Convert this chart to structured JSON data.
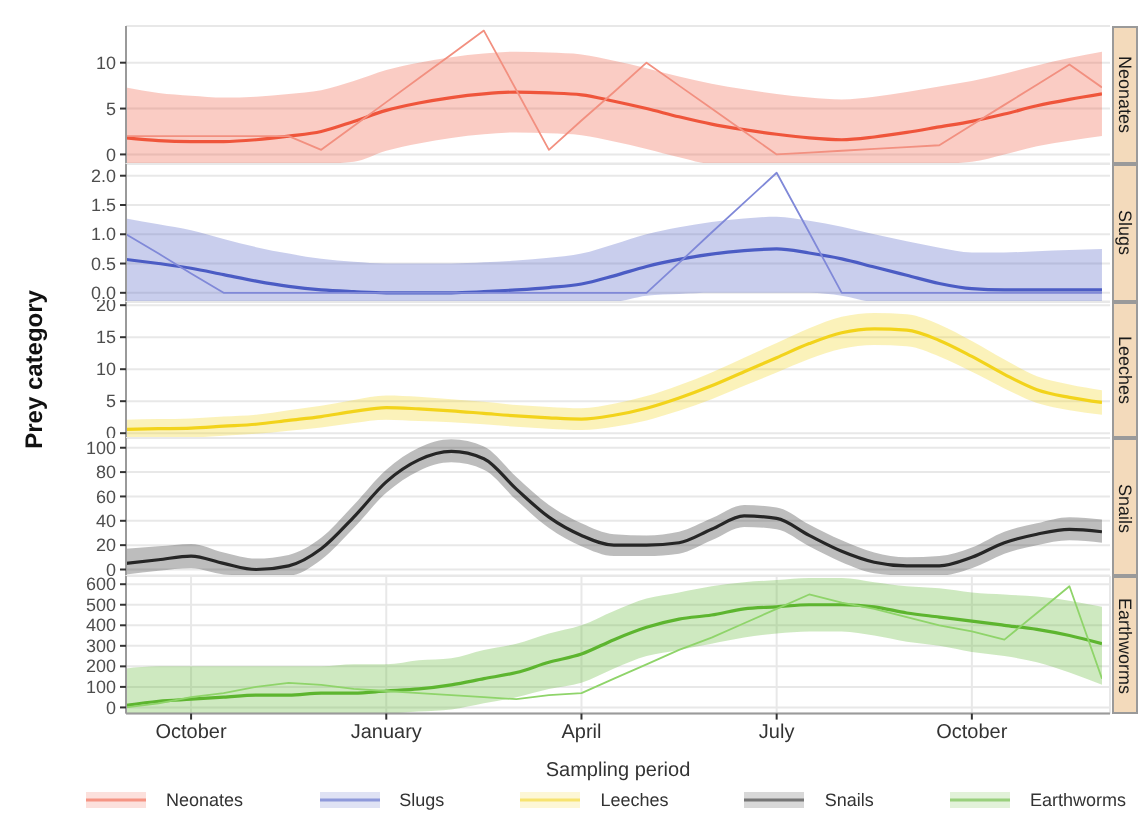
{
  "chart_data": [
    {
      "type": "line",
      "title": "Neonates",
      "categories": [
        null,
        null,
        null,
        null,
        null,
        null,
        null,
        null,
        null,
        null,
        null,
        null,
        null,
        null,
        null,
        null,
        null,
        null,
        null,
        null,
        null,
        null,
        null,
        null,
        null,
        null,
        null,
        null,
        null,
        null,
        null
      ],
      "ylim": [
        -1,
        14
      ],
      "yticks": [
        0,
        5,
        10
      ],
      "grid": "y",
      "legend": "bottom",
      "tick_labels": "y",
      "series": [
        {
          "name": "Neonates",
          "color": "#ef553b",
          "values": [
            1.8,
            1.5,
            1.4,
            1.4,
            1.6,
            2.0,
            2.5,
            3.6,
            4.8,
            5.6,
            6.2,
            6.6,
            6.8,
            6.7,
            6.5,
            5.8,
            5.0,
            4.1,
            3.3,
            2.7,
            2.2,
            1.8,
            1.6,
            1.9,
            2.4,
            3.0,
            3.6,
            4.4,
            5.3,
            6.0,
            6.6
          ],
          "lower": [
            -1,
            -1,
            -1,
            -1,
            -1,
            -1,
            -1,
            -0.8,
            0.4,
            1.2,
            1.8,
            2.2,
            2.4,
            2.3,
            2.1,
            1.4,
            0.6,
            -0.3,
            -1,
            -1,
            -1,
            -1,
            -1,
            -1,
            -1,
            -1,
            -0.8,
            0.0,
            0.9,
            1.5,
            2.0
          ],
          "upper": [
            7.3,
            6.7,
            6.4,
            6.2,
            6.3,
            6.6,
            7.0,
            8.0,
            9.2,
            10.0,
            10.6,
            11.0,
            11.2,
            11.1,
            10.9,
            10.2,
            9.4,
            8.5,
            7.7,
            7.1,
            6.6,
            6.2,
            6.0,
            6.3,
            6.8,
            7.4,
            8.0,
            8.8,
            9.7,
            10.5,
            11.2
          ]
        },
        {
          "color": "#f29080",
          "values": [
            2.0,
            2.0,
            2.0,
            2.0,
            2.0,
            2.0,
            0.5,
            3.1,
            5.7,
            8.3,
            10.9,
            13.5,
            7.0,
            0.5,
            3.7,
            6.8,
            10,
            7.5,
            5.0,
            2.5,
            0,
            0.2,
            0.4,
            0.6,
            0.8,
            1.0,
            3.2,
            5.4,
            7.6,
            9.8,
            7.3
          ]
        }
      ]
    },
    {
      "type": "line",
      "title": "Slugs",
      "categories": [
        null,
        null,
        null,
        null,
        null,
        null,
        null,
        null,
        null,
        null,
        null,
        null,
        null,
        null,
        null,
        null,
        null,
        null,
        null,
        null,
        null,
        null,
        null,
        null,
        null,
        null,
        null,
        null,
        null,
        null,
        null
      ],
      "ylim": [
        -0.15,
        2.2
      ],
      "yticks": [
        {
          "value": 0,
          "label": "0.0"
        },
        {
          "value": 0.5,
          "label": "0.5"
        },
        {
          "value": 1,
          "label": "1.0"
        },
        {
          "value": 1.5,
          "label": "1.5"
        },
        {
          "value": 2,
          "label": "2.0"
        }
      ],
      "grid": "y",
      "legend": "bottom",
      "tick_labels": "y",
      "series": [
        {
          "name": "Slugs",
          "color": "#4b5cc4",
          "values": [
            0.57,
            0.5,
            0.42,
            0.31,
            0.2,
            0.11,
            0.05,
            0.02,
            0,
            0,
            0,
            0.02,
            0.05,
            0.09,
            0.15,
            0.29,
            0.45,
            0.57,
            0.66,
            0.72,
            0.75,
            0.68,
            0.58,
            0.44,
            0.3,
            0.16,
            0.07,
            0.05,
            0.05,
            0.05,
            0.05
          ],
          "lower": [
            -0.15,
            -0.15,
            -0.15,
            -0.15,
            -0.15,
            -0.15,
            -0.15,
            -0.15,
            -0.15,
            -0.15,
            -0.15,
            -0.15,
            -0.15,
            -0.15,
            -0.15,
            -0.15,
            -0.05,
            -0.02,
            0,
            0,
            0,
            0,
            -0.05,
            -0.15,
            -0.15,
            -0.15,
            -0.15,
            -0.15,
            -0.15,
            -0.15,
            -0.15
          ],
          "upper": [
            1.27,
            1.17,
            1.07,
            0.92,
            0.78,
            0.67,
            0.58,
            0.53,
            0.5,
            0.5,
            0.5,
            0.52,
            0.55,
            0.6,
            0.67,
            0.83,
            1.0,
            1.12,
            1.21,
            1.27,
            1.3,
            1.23,
            1.13,
            1.0,
            0.88,
            0.77,
            0.69,
            0.69,
            0.71,
            0.73,
            0.75
          ]
        },
        {
          "color": "#8089d8",
          "values": [
            1.0,
            0.67,
            0.33,
            0,
            0,
            0,
            0,
            0,
            0,
            0,
            0,
            0,
            0,
            0,
            0,
            0,
            0,
            0.51,
            1.03,
            1.54,
            2.05,
            1.03,
            0,
            0,
            0,
            0,
            0,
            0,
            0,
            0,
            0
          ]
        }
      ]
    },
    {
      "type": "line",
      "title": "Leeches",
      "ylabel": "Prey category",
      "categories": [
        null,
        null,
        null,
        null,
        null,
        null,
        null,
        null,
        null,
        null,
        null,
        null,
        null,
        null,
        null,
        null,
        null,
        null,
        null,
        null,
        null,
        null,
        null,
        null,
        null,
        null,
        null,
        null,
        null,
        null,
        null
      ],
      "ylim": [
        -1,
        20.5
      ],
      "yticks": [
        0,
        5,
        10,
        15,
        20
      ],
      "grid": "y",
      "legend": "bottom",
      "tick_labels": "y",
      "series": [
        {
          "name": "Leeches",
          "color": "#f2d31b",
          "values": [
            0.6,
            0.7,
            0.8,
            1.1,
            1.4,
            2.0,
            2.6,
            3.4,
            4.0,
            3.8,
            3.5,
            3.1,
            2.7,
            2.4,
            2.2,
            2.8,
            3.9,
            5.5,
            7.4,
            9.6,
            11.8,
            14.0,
            15.7,
            16.3,
            16.1,
            14.5,
            12.0,
            9.2,
            6.8,
            5.6,
            4.8
          ],
          "lower": [
            -0.9,
            -0.8,
            -0.7,
            -0.4,
            -0.1,
            0.4,
            0.9,
            1.6,
            2.1,
            1.9,
            1.7,
            1.4,
            1.0,
            0.7,
            0.5,
            1.0,
            2.0,
            3.5,
            5.3,
            7.4,
            9.5,
            11.6,
            13.2,
            13.8,
            13.6,
            12.0,
            9.6,
            7.0,
            4.7,
            3.6,
            2.9
          ],
          "upper": [
            2.1,
            2.2,
            2.3,
            2.6,
            2.9,
            3.6,
            4.3,
            5.2,
            5.9,
            5.7,
            5.3,
            4.9,
            4.4,
            4.1,
            3.9,
            4.6,
            5.8,
            7.5,
            9.5,
            11.8,
            14.1,
            16.4,
            18.2,
            18.8,
            18.6,
            17.0,
            14.4,
            11.5,
            8.9,
            7.6,
            6.7
          ]
        }
      ]
    },
    {
      "type": "line",
      "title": "Snails",
      "categories": [
        null,
        null,
        null,
        null,
        null,
        null,
        null,
        null,
        null,
        null,
        null,
        null,
        null,
        null,
        null,
        null,
        null,
        null,
        null,
        null,
        null,
        null,
        null,
        null,
        null,
        null,
        null,
        null,
        null,
        null,
        null
      ],
      "ylim": [
        -5,
        108
      ],
      "yticks": [
        0,
        20,
        40,
        60,
        80,
        100
      ],
      "grid": "y",
      "legend": "bottom",
      "tick_labels": "y",
      "series": [
        {
          "name": "Snails",
          "color": "#262626",
          "values": [
            5,
            8,
            11,
            5,
            0,
            3,
            17,
            43,
            72,
            90,
            97,
            91,
            66,
            43,
            28,
            20,
            20,
            22,
            33,
            44,
            42,
            28,
            15,
            6,
            3,
            3,
            10,
            22,
            29,
            33,
            31
          ],
          "lower": [
            -4,
            -1,
            1,
            -4,
            -5,
            -5,
            8,
            34,
            63,
            81,
            88,
            82,
            57,
            34,
            19,
            11,
            11,
            13,
            24,
            35,
            33,
            19,
            6,
            -3,
            -5,
            -5,
            1,
            13,
            20,
            24,
            22
          ],
          "upper": [
            17,
            19,
            21,
            14,
            9,
            12,
            26,
            53,
            82,
            100,
            107,
            101,
            76,
            53,
            38,
            29,
            28,
            31,
            42,
            53,
            51,
            37,
            24,
            14,
            10,
            11,
            18,
            31,
            38,
            43,
            41
          ]
        }
      ]
    },
    {
      "type": "line",
      "title": "Earthworms",
      "xlabel": "Sampling period",
      "categories": [
        null,
        null,
        "October",
        null,
        null,
        null,
        null,
        null,
        "January",
        null,
        null,
        null,
        null,
        null,
        "April",
        null,
        null,
        null,
        null,
        null,
        "July",
        null,
        null,
        null,
        null,
        null,
        "October",
        null,
        null,
        null,
        null
      ],
      "ylim": [
        -30,
        640
      ],
      "yticks": [
        0,
        100,
        200,
        300,
        400,
        500,
        600
      ],
      "grid": true,
      "legend": "bottom",
      "series": [
        {
          "name": "Earthworms",
          "color": "#5db52f",
          "values": [
            10,
            30,
            40,
            50,
            60,
            60,
            70,
            70,
            80,
            90,
            110,
            140,
            170,
            220,
            260,
            330,
            390,
            430,
            450,
            480,
            490,
            500,
            500,
            490,
            460,
            440,
            420,
            400,
            380,
            350,
            310
          ],
          "lower": [
            -30,
            -30,
            -30,
            -30,
            -30,
            -30,
            -30,
            -30,
            -30,
            -20,
            -10,
            20,
            50,
            90,
            120,
            190,
            250,
            280,
            310,
            340,
            360,
            370,
            370,
            350,
            320,
            300,
            270,
            250,
            220,
            170,
            110
          ],
          "upper": [
            190,
            200,
            200,
            200,
            200,
            200,
            200,
            210,
            210,
            230,
            240,
            280,
            310,
            360,
            400,
            470,
            530,
            560,
            590,
            610,
            620,
            630,
            630,
            610,
            590,
            580,
            560,
            550,
            540,
            520,
            490
          ]
        },
        {
          "color": "#8fd46a",
          "values": [
            0,
            20,
            50,
            70,
            100,
            120,
            110,
            90,
            80,
            70,
            60,
            50,
            40,
            60,
            70,
            140,
            210,
            280,
            340,
            410,
            480,
            550,
            510,
            480,
            440,
            400,
            370,
            330,
            460,
            590,
            140
          ]
        }
      ]
    }
  ]
}
